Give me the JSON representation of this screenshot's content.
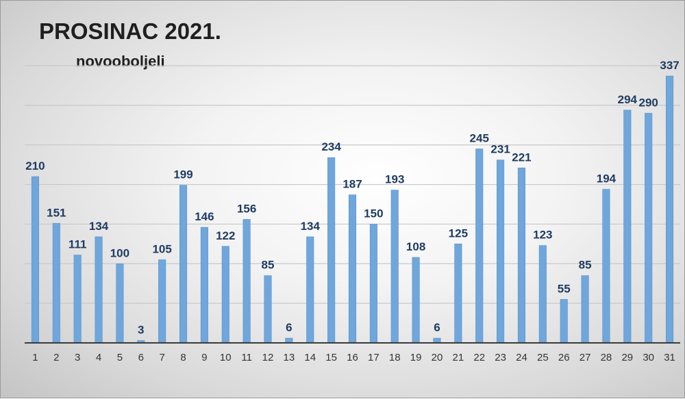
{
  "chart_data": {
    "type": "bar",
    "title": "PROSINAC 2021.",
    "subtitle": "novooboljeli",
    "xlabel": "",
    "ylabel": "",
    "ylim": [
      0,
      350
    ],
    "grid": true,
    "legend": "none",
    "bar_color": "#6fa6dc",
    "label_color": "#1f3b63",
    "categories": [
      "1",
      "2",
      "3",
      "4",
      "5",
      "6",
      "7",
      "8",
      "9",
      "10",
      "11",
      "12",
      "13",
      "14",
      "15",
      "16",
      "17",
      "18",
      "19",
      "20",
      "21",
      "22",
      "23",
      "24",
      "25",
      "26",
      "27",
      "28",
      "29",
      "30",
      "31"
    ],
    "values": [
      210,
      151,
      111,
      134,
      100,
      3,
      105,
      199,
      146,
      122,
      156,
      85,
      6,
      134,
      234,
      187,
      150,
      193,
      108,
      6,
      125,
      245,
      231,
      221,
      123,
      55,
      85,
      194,
      294,
      290,
      337
    ]
  }
}
